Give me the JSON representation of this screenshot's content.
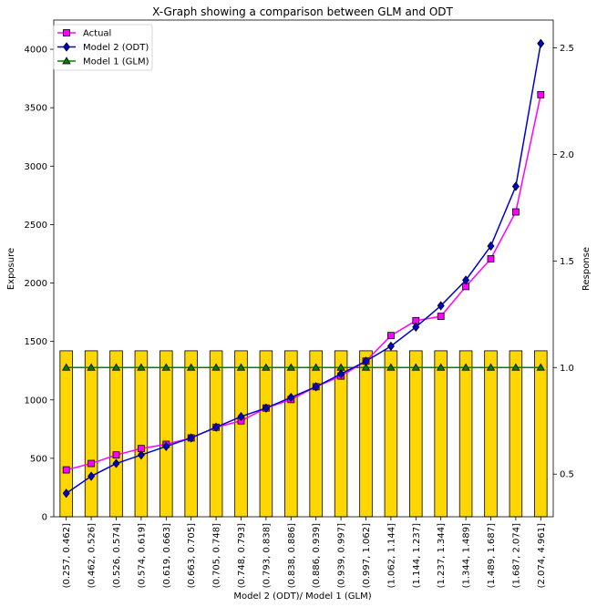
{
  "chart_data": {
    "type": "bar",
    "title": "X-Graph showing a comparison between GLM and ODT",
    "xlabel": "Model 2 (ODT)/ Model 1 (GLM)",
    "ylabel": "Exposure",
    "y2label": "Response",
    "categories": [
      "(0.257, 0.462]",
      "(0.462, 0.526]",
      "(0.526, 0.574]",
      "(0.574, 0.619]",
      "(0.619, 0.663]",
      "(0.663, 0.705]",
      "(0.705, 0.748]",
      "(0.748, 0.793]",
      "(0.793, 0.838]",
      "(0.838, 0.886]",
      "(0.886, 0.939]",
      "(0.939, 0.997]",
      "(0.997, 1.062]",
      "(1.062, 1.144]",
      "(1.144, 1.237]",
      "(1.237, 1.344]",
      "(1.344, 1.489]",
      "(1.489, 1.687]",
      "(1.687, 2.074]",
      "(2.074, 4.961]"
    ],
    "ylim": [
      0,
      4250
    ],
    "y2lim": [
      0.3,
      2.63
    ],
    "yticks": [
      0,
      500,
      1000,
      1500,
      2000,
      2500,
      3000,
      3500,
      4000
    ],
    "y2ticks": [
      0.5,
      1.0,
      1.5,
      2.0,
      2.5
    ],
    "bars": {
      "axis": "left",
      "color": "#FFD700",
      "values": [
        1420,
        1420,
        1420,
        1420,
        1420,
        1420,
        1420,
        1420,
        1420,
        1420,
        1420,
        1420,
        1420,
        1420,
        1420,
        1420,
        1420,
        1420,
        1420,
        1420
      ]
    },
    "series": [
      {
        "name": "Actual",
        "axis": "right",
        "color": "#FF00FF",
        "marker": "square",
        "values": [
          0.52,
          0.55,
          0.59,
          0.62,
          0.64,
          0.67,
          0.72,
          0.75,
          0.81,
          0.85,
          0.91,
          0.96,
          1.03,
          1.15,
          1.22,
          1.24,
          1.38,
          1.51,
          1.73,
          2.28
        ]
      },
      {
        "name": "Model 2 (ODT)",
        "axis": "right",
        "color": "#0000CD",
        "marker": "diamond",
        "values": [
          0.41,
          0.49,
          0.55,
          0.59,
          0.63,
          0.67,
          0.72,
          0.77,
          0.81,
          0.86,
          0.91,
          0.97,
          1.03,
          1.1,
          1.19,
          1.29,
          1.41,
          1.57,
          1.85,
          2.52
        ]
      },
      {
        "name": "Model 1 (GLM)",
        "axis": "right",
        "color": "#008000",
        "marker": "triangle",
        "values": [
          1.0,
          1.0,
          1.0,
          1.0,
          1.0,
          1.0,
          1.0,
          1.0,
          1.0,
          1.0,
          1.0,
          1.0,
          1.0,
          1.0,
          1.0,
          1.0,
          1.0,
          1.0,
          1.0,
          1.0
        ]
      }
    ],
    "legend_position": "top-left",
    "grid": false
  }
}
